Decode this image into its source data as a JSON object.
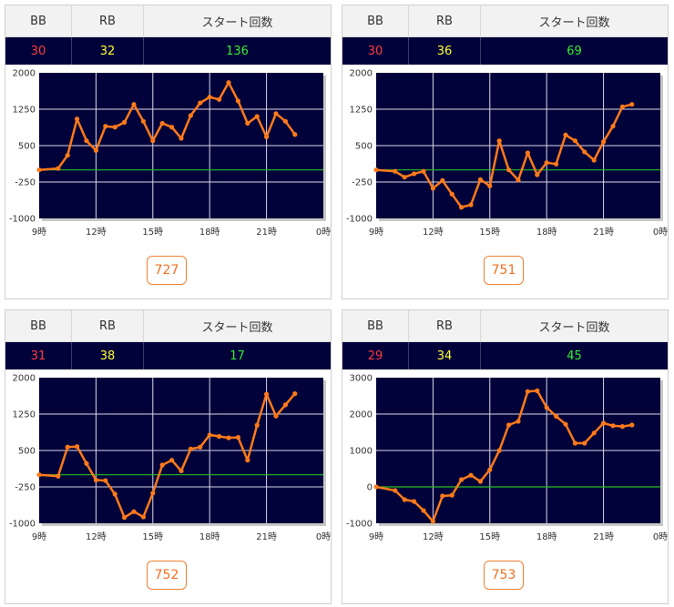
{
  "headers": {
    "bb": "BB",
    "rb": "RB",
    "start": "スタート回数"
  },
  "accent_colors": {
    "bb": "#ff3b3b",
    "rb": "#ffff33",
    "start": "#33ee33",
    "line": "#ff7a1a",
    "zero_line": "#22bb22",
    "plot_bg": "#02023a"
  },
  "panels": [
    {
      "bb": "30",
      "rb": "32",
      "start": "136",
      "score": "727"
    },
    {
      "bb": "30",
      "rb": "36",
      "start": "69",
      "score": "751"
    },
    {
      "bb": "31",
      "rb": "38",
      "start": "17",
      "score": "752"
    },
    {
      "bb": "29",
      "rb": "34",
      "start": "45",
      "score": "753"
    }
  ],
  "chart_data": [
    {
      "type": "line",
      "title": "",
      "xlabel": "",
      "ylabel": "",
      "x_ticks": [
        "9時",
        "12時",
        "15時",
        "18時",
        "21時",
        "0時"
      ],
      "y_ticks": [
        "2000",
        "1250",
        "500",
        "-250",
        "-1000"
      ],
      "xlim": [
        9,
        24
      ],
      "ylim": [
        -1000,
        2000
      ],
      "grid": true,
      "x": [
        9,
        10,
        10.5,
        11,
        11.5,
        12,
        12.5,
        13,
        13.5,
        14,
        14.5,
        15,
        15.5,
        16,
        16.5,
        17,
        17.5,
        18,
        18.5,
        19,
        19.5,
        20,
        20.5,
        21,
        21.5,
        22,
        22.5
      ],
      "values": [
        0,
        30,
        300,
        1050,
        600,
        400,
        900,
        880,
        980,
        1350,
        1000,
        600,
        960,
        880,
        650,
        1120,
        1380,
        1500,
        1450,
        1800,
        1420,
        960,
        1100,
        680,
        1160,
        1000,
        730
      ]
    },
    {
      "type": "line",
      "title": "",
      "xlabel": "",
      "ylabel": "",
      "x_ticks": [
        "9時",
        "12時",
        "15時",
        "18時",
        "21時",
        "0時"
      ],
      "y_ticks": [
        "2000",
        "1250",
        "500",
        "-250",
        "-1000"
      ],
      "xlim": [
        9,
        24
      ],
      "ylim": [
        -1000,
        2000
      ],
      "grid": true,
      "x": [
        9,
        10,
        10.5,
        11,
        11.5,
        12,
        12.5,
        13,
        13.5,
        14,
        14.5,
        15,
        15.5,
        16,
        16.5,
        17,
        17.5,
        18,
        18.5,
        19,
        19.5,
        20,
        20.5,
        21,
        21.5,
        22,
        22.5
      ],
      "values": [
        0,
        -30,
        -150,
        -80,
        -30,
        -380,
        -220,
        -500,
        -770,
        -720,
        -200,
        -330,
        600,
        0,
        -210,
        350,
        -100,
        150,
        120,
        720,
        600,
        370,
        200,
        580,
        900,
        1300,
        1350
      ]
    },
    {
      "type": "line",
      "title": "",
      "xlabel": "",
      "ylabel": "",
      "x_ticks": [
        "9時",
        "12時",
        "15時",
        "18時",
        "21時",
        "0時"
      ],
      "y_ticks": [
        "2000",
        "1250",
        "500",
        "-250",
        "-1000"
      ],
      "xlim": [
        9,
        24
      ],
      "ylim": [
        -1000,
        2000
      ],
      "grid": true,
      "x": [
        9,
        10,
        10.5,
        11,
        11.5,
        12,
        12.5,
        13,
        13.5,
        14,
        14.5,
        15,
        15.5,
        16,
        16.5,
        17,
        17.5,
        18,
        18.5,
        19,
        19.5,
        20,
        20.5,
        21,
        21.5,
        22,
        22.5
      ],
      "values": [
        0,
        -30,
        570,
        580,
        230,
        -110,
        -120,
        -400,
        -880,
        -760,
        -870,
        -380,
        200,
        300,
        80,
        530,
        570,
        820,
        790,
        760,
        770,
        300,
        1020,
        1660,
        1210,
        1440,
        1670
      ]
    },
    {
      "type": "line",
      "title": "",
      "xlabel": "",
      "ylabel": "",
      "x_ticks": [
        "9時",
        "12時",
        "15時",
        "18時",
        "21時",
        "0時"
      ],
      "y_ticks": [
        "3000",
        "2000",
        "1000",
        "0",
        "-1000"
      ],
      "xlim": [
        9,
        24
      ],
      "ylim": [
        -1000,
        3000
      ],
      "grid": true,
      "x": [
        9,
        10,
        10.5,
        11,
        11.5,
        12,
        12.5,
        13,
        13.5,
        14,
        14.5,
        15,
        15.5,
        16,
        16.5,
        17,
        17.5,
        18,
        18.5,
        19,
        19.5,
        20,
        20.5,
        21,
        21.5,
        22,
        22.5
      ],
      "values": [
        0,
        -100,
        -350,
        -400,
        -650,
        -950,
        -250,
        -230,
        200,
        320,
        150,
        470,
        1000,
        1700,
        1800,
        2620,
        2640,
        2180,
        1940,
        1720,
        1200,
        1200,
        1480,
        1750,
        1680,
        1660,
        1700
      ]
    }
  ]
}
